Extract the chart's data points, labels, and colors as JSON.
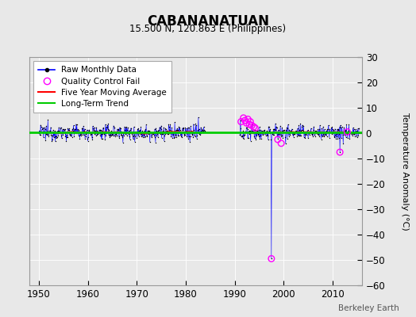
{
  "title": "CABANANATUAN",
  "subtitle": "15.500 N, 120.863 E (Philippines)",
  "ylabel": "Temperature Anomaly (°C)",
  "credit": "Berkeley Earth",
  "xlim": [
    1948,
    2016
  ],
  "ylim": [
    -60,
    30
  ],
  "yticks": [
    -60,
    -50,
    -40,
    -30,
    -20,
    -10,
    0,
    10,
    20,
    30
  ],
  "xticks": [
    1950,
    1960,
    1970,
    1980,
    1990,
    2000,
    2010
  ],
  "bg_color": "#e8e8e8",
  "plot_bg_color": "#e8e8e8",
  "raw_color": "#000000",
  "ma_color": "#ff0000",
  "trend_color": "#00cc00",
  "qc_color": "#ff00ff",
  "line_color": "#0000ff",
  "seg1_start": 1950.0,
  "seg1_end": 1984.0,
  "seg2_start": 1991.0,
  "seg2_end": 2015.5,
  "spike_x": 1997.5,
  "spike_y": -49.5,
  "spike2_x": 2011.5,
  "spike2_y": -7.5,
  "noise_std": 1.5,
  "mean_level": 0.3,
  "trend_level": 0.3
}
